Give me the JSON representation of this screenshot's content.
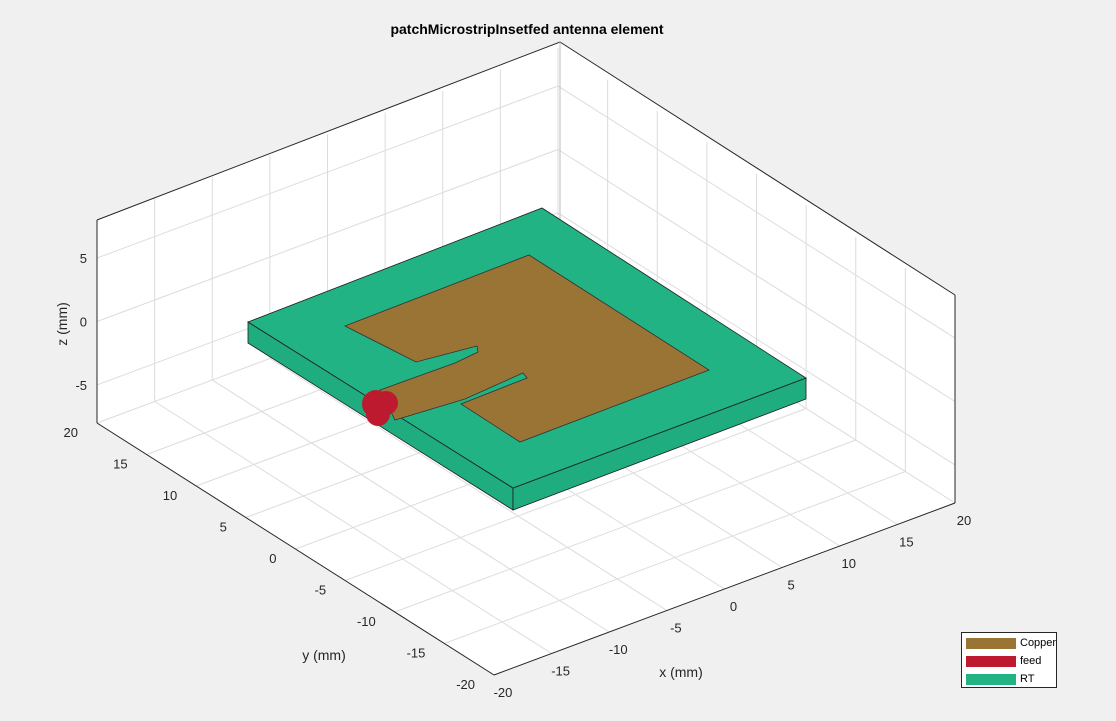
{
  "chart_data": {
    "type": "3d-geometry",
    "title": "patchMicrostripInsetfed antenna element",
    "xlabel": "x (mm)",
    "ylabel": "y (mm)",
    "zlabel": "z (mm)",
    "x_ticks": [
      "-20",
      "-15",
      "-10",
      "-5",
      "0",
      "5",
      "10",
      "15",
      "20"
    ],
    "y_ticks": [
      "-20",
      "-15",
      "-10",
      "-5",
      "0",
      "5",
      "10",
      "15",
      "20"
    ],
    "z_ticks": [
      "-5",
      "0",
      "5"
    ],
    "xlim": [
      -20,
      20
    ],
    "ylim": [
      -20,
      20
    ],
    "zlim": [
      -8,
      8
    ],
    "grid": true,
    "legend_position": "bottom-right",
    "legend": [
      {
        "name": "Copper",
        "color": "#9a7434"
      },
      {
        "name": "feed",
        "color": "#bd1a2f"
      },
      {
        "name": "RT",
        "color": "#21b384"
      }
    ],
    "colors": {
      "substrate_top": "#21b384",
      "substrate_side": "#1fac7f",
      "copper": "#9a7434",
      "feed": "#bd1a2f",
      "grid": "#dcdcdc",
      "axes_background": "#ffffff",
      "figure_background": "#f0f0f0"
    }
  }
}
